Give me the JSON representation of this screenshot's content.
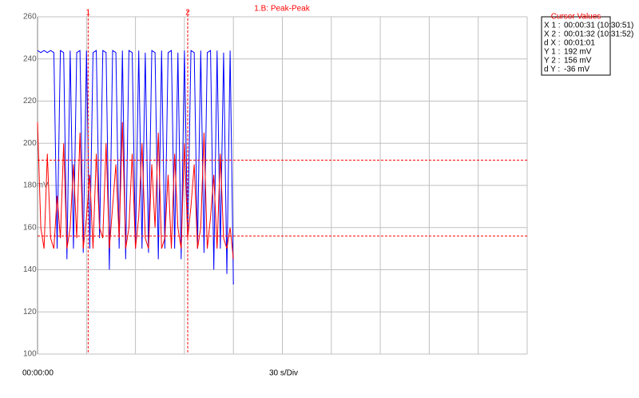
{
  "chart_data": {
    "type": "line",
    "title": "1.B: Peak-Peak",
    "x_start_label": "00:00:00",
    "x_div_label": "30 s/Div",
    "xlim": [
      0,
      300
    ],
    "x_divisions": [
      0,
      30,
      60,
      90,
      120,
      150,
      180,
      210,
      240,
      270,
      300
    ],
    "ylim": [
      100,
      260
    ],
    "yticks": [
      100,
      120,
      140,
      160,
      {
        "value": 180,
        "label": "180mV"
      },
      200,
      220,
      240,
      260
    ],
    "grid": true,
    "x": [
      0,
      2,
      4,
      6,
      8,
      10,
      12,
      14,
      16,
      18,
      20,
      22,
      24,
      26,
      28,
      30,
      32,
      34,
      36,
      38,
      40,
      42,
      44,
      46,
      48,
      50,
      52,
      54,
      56,
      58,
      60,
      62,
      64,
      66,
      68,
      70,
      72,
      74,
      76,
      78,
      80,
      82,
      84,
      86,
      88,
      90,
      92,
      94,
      96,
      98,
      100,
      102,
      104,
      106,
      108,
      110,
      112,
      114,
      116,
      118,
      120
    ],
    "series": [
      {
        "name": "blue",
        "color": "#0000ff",
        "values": [
          244,
          243,
          244,
          243,
          244,
          243,
          150,
          244,
          243,
          145,
          244,
          150,
          243,
          244,
          148,
          244,
          150,
          243,
          244,
          155,
          244,
          243,
          140,
          244,
          243,
          150,
          244,
          145,
          244,
          243,
          150,
          244,
          150,
          243,
          148,
          244,
          243,
          145,
          244,
          150,
          243,
          244,
          150,
          243,
          145,
          244,
          155,
          244,
          243,
          150,
          244,
          148,
          243,
          244,
          140,
          244,
          150,
          243,
          138,
          244,
          133
        ]
      },
      {
        "name": "red",
        "color": "#ff0000",
        "values": [
          210,
          160,
          150,
          195,
          155,
          150,
          175,
          155,
          200,
          150,
          160,
          190,
          155,
          205,
          150,
          165,
          185,
          150,
          195,
          160,
          155,
          200,
          150,
          170,
          190,
          155,
          210,
          150,
          160,
          195,
          150,
          165,
          200,
          155,
          150,
          190,
          160,
          205,
          150,
          155,
          185,
          150,
          195,
          160,
          150,
          200,
          155,
          170,
          190,
          150,
          160,
          205,
          150,
          165,
          185,
          150,
          195,
          155,
          150,
          160,
          145
        ]
      }
    ],
    "cursors": {
      "x": [
        31,
        92
      ],
      "x_labels": [
        "1",
        "2"
      ],
      "y": [
        192,
        156
      ]
    },
    "cursor_box": {
      "title": "Cursor Values",
      "rows": [
        {
          "label": "X 1 :",
          "value": "00:00:31 (10:30:51)"
        },
        {
          "label": "X 2 :",
          "value": "00:01:32 (10:31:52)"
        },
        {
          "label": "d X :",
          "value": "00:01:01"
        },
        {
          "label": "Y 1 :",
          "value": "192 mV"
        },
        {
          "label": "Y 2 :",
          "value": "156 mV"
        },
        {
          "label": "d Y :",
          "value": "-36 mV"
        }
      ]
    }
  }
}
